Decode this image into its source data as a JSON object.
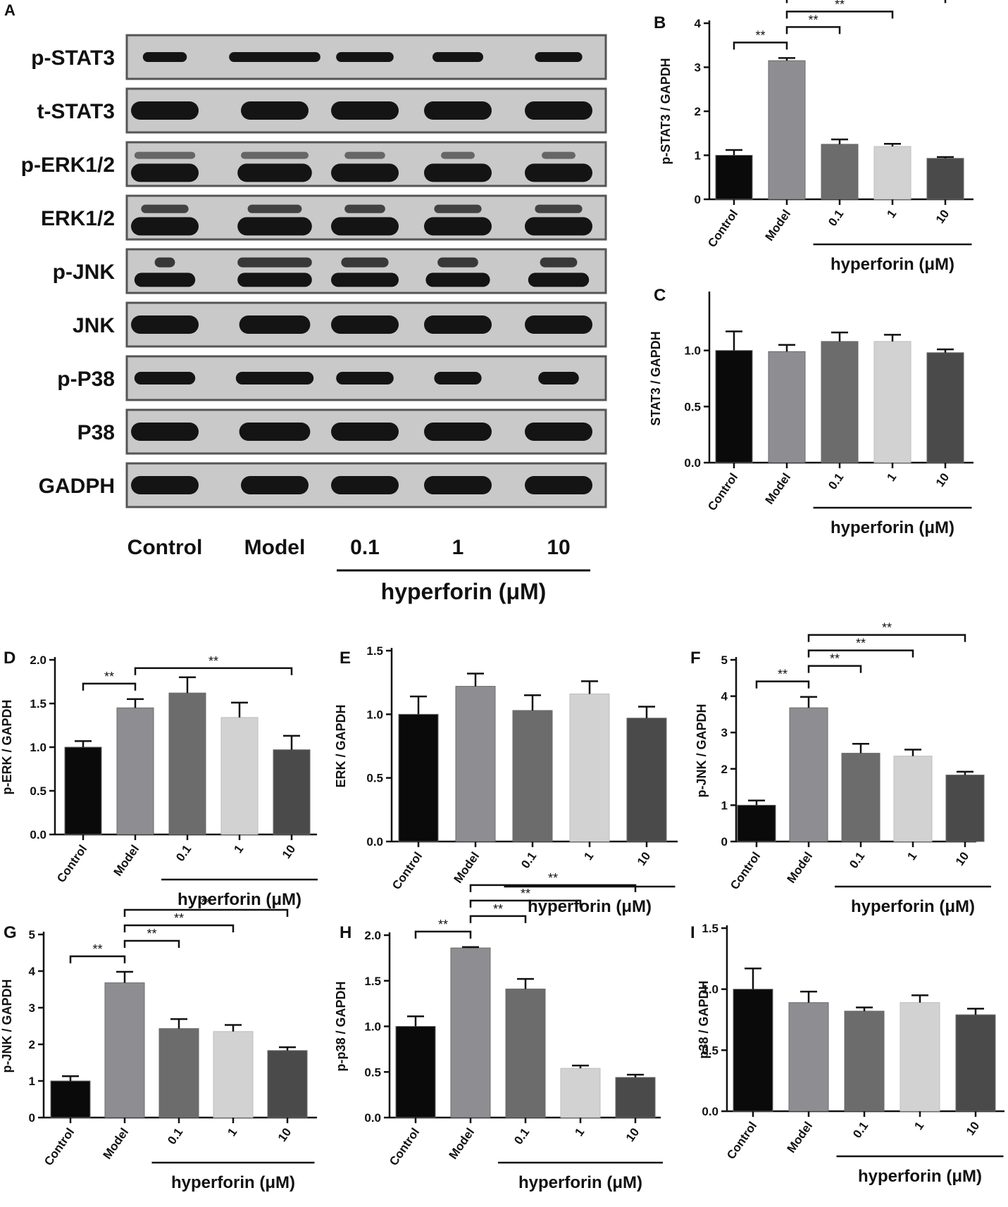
{
  "figure": {
    "blot": {
      "panel_label": "A",
      "rows": [
        "p-STAT3",
        "t-STAT3",
        "p-ERK1/2",
        "ERK1/2",
        "p-JNK",
        "JNK",
        "p-P38",
        "P38",
        "GADPH"
      ],
      "lanes": [
        "Control",
        "Model",
        "0.1",
        "1",
        "10"
      ],
      "treatment_label": "hyperforin (μM)"
    }
  },
  "colors": {
    "Control": "#0a0a0a",
    "Model": "#8e8e92",
    "0.1": "#6c6c6c",
    "1": "#d2d2d2",
    "10": "#4a4a4a",
    "blot_bg": "#c9c9c9",
    "blot_border": "#555555"
  },
  "chart_data": [
    {
      "panel": "B",
      "type": "bar",
      "categories": [
        "Control",
        "Model",
        "0.1",
        "1",
        "10"
      ],
      "values": [
        1.0,
        3.15,
        1.25,
        1.2,
        0.93
      ],
      "errors": [
        0.12,
        0.06,
        0.11,
        0.06,
        0.03
      ],
      "ylabel": "p-STAT3 / GAPDH",
      "xlabel": "",
      "group_label": "hyperforin (μM)",
      "ylim": [
        0,
        4
      ],
      "yticks": [
        "0",
        "1",
        "2",
        "3",
        "4"
      ],
      "significance": [
        {
          "from": "Control",
          "to": "Model",
          "label": "**"
        },
        {
          "from": "Model",
          "to": "0.1",
          "label": "**"
        },
        {
          "from": "Model",
          "to": "1",
          "label": "**"
        },
        {
          "from": "Model",
          "to": "10",
          "label": "**"
        }
      ]
    },
    {
      "panel": "C",
      "type": "bar",
      "categories": [
        "Control",
        "Model",
        "0.1",
        "1",
        "10"
      ],
      "values": [
        1.0,
        0.99,
        1.08,
        1.08,
        0.98
      ],
      "errors": [
        0.17,
        0.06,
        0.08,
        0.06,
        0.03
      ],
      "ylabel": "STAT3 / GAPDH",
      "xlabel": "",
      "group_label": "hyperforin (μM)",
      "ylim": [
        0,
        1.5
      ],
      "yticks": [
        "0.0",
        "0.5",
        "1.0"
      ],
      "significance": []
    },
    {
      "panel": "D",
      "type": "bar",
      "categories": [
        "Control",
        "Model",
        "0.1",
        "1",
        "10"
      ],
      "values": [
        1.0,
        1.45,
        1.62,
        1.34,
        0.97
      ],
      "errors": [
        0.07,
        0.1,
        0.18,
        0.17,
        0.16
      ],
      "ylabel": "p-ERK / GAPDH",
      "xlabel": "",
      "group_label": "hyperforin (μM)",
      "ylim": [
        0,
        2.0
      ],
      "yticks": [
        "0.0",
        "0.5",
        "1.0",
        "1.5",
        "2.0"
      ],
      "significance": [
        {
          "from": "Control",
          "to": "Model",
          "label": "**"
        },
        {
          "from": "Model",
          "to": "10",
          "label": "**"
        }
      ]
    },
    {
      "panel": "E",
      "type": "bar",
      "categories": [
        "Control",
        "Model",
        "0.1",
        "1",
        "10"
      ],
      "values": [
        1.0,
        1.22,
        1.03,
        1.16,
        0.97
      ],
      "errors": [
        0.14,
        0.1,
        0.12,
        0.1,
        0.09
      ],
      "ylabel": "ERK / GAPDH",
      "xlabel": "",
      "group_label": "hyperforin (μM)",
      "ylim": [
        0,
        1.5
      ],
      "yticks": [
        "0.0",
        "0.5",
        "1.0",
        "1.5"
      ],
      "significance": []
    },
    {
      "panel": "F",
      "type": "bar",
      "categories": [
        "Control",
        "Model",
        "0.1",
        "1",
        "10"
      ],
      "values": [
        1.0,
        3.68,
        2.43,
        2.35,
        1.83
      ],
      "errors": [
        0.13,
        0.3,
        0.26,
        0.18,
        0.09
      ],
      "ylabel": "p-JNK / GAPDH",
      "xlabel": "",
      "group_label": "hyperforin (μM)",
      "ylim": [
        0,
        5
      ],
      "yticks": [
        "0",
        "1",
        "2",
        "3",
        "4",
        "5"
      ],
      "significance": [
        {
          "from": "Control",
          "to": "Model",
          "label": "**"
        },
        {
          "from": "Model",
          "to": "0.1",
          "label": "**"
        },
        {
          "from": "Model",
          "to": "1",
          "label": "**"
        },
        {
          "from": "Model",
          "to": "10",
          "label": "**"
        }
      ]
    },
    {
      "panel": "G",
      "type": "bar",
      "categories": [
        "Control",
        "Model",
        "0.1",
        "1",
        "10"
      ],
      "values": [
        1.0,
        3.68,
        2.43,
        2.35,
        1.83
      ],
      "errors": [
        0.13,
        0.3,
        0.26,
        0.18,
        0.09
      ],
      "ylabel": "p-JNK / GAPDH",
      "xlabel": "",
      "group_label": "hyperforin (μM)",
      "ylim": [
        0,
        5
      ],
      "yticks": [
        "0",
        "1",
        "2",
        "3",
        "4",
        "5"
      ],
      "significance": [
        {
          "from": "Control",
          "to": "Model",
          "label": "**"
        },
        {
          "from": "Model",
          "to": "0.1",
          "label": "**"
        },
        {
          "from": "Model",
          "to": "1",
          "label": "**"
        },
        {
          "from": "Model",
          "to": "10",
          "label": "**"
        }
      ]
    },
    {
      "panel": "H",
      "type": "bar",
      "categories": [
        "Control",
        "Model",
        "0.1",
        "1",
        "10"
      ],
      "values": [
        1.0,
        1.86,
        1.41,
        0.54,
        0.44
      ],
      "errors": [
        0.11,
        0.01,
        0.11,
        0.03,
        0.03
      ],
      "ylabel": "p-p38 / GAPDH",
      "xlabel": "",
      "group_label": "hyperforin (μM)",
      "ylim": [
        0,
        2.0
      ],
      "yticks": [
        "0.0",
        "0.5",
        "1.0",
        "1.5",
        "2.0"
      ],
      "significance": [
        {
          "from": "Control",
          "to": "Model",
          "label": "**"
        },
        {
          "from": "Model",
          "to": "0.1",
          "label": "**"
        },
        {
          "from": "Model",
          "to": "1",
          "label": "**"
        },
        {
          "from": "Model",
          "to": "10",
          "label": "**"
        }
      ]
    },
    {
      "panel": "I",
      "type": "bar",
      "categories": [
        "Control",
        "Model",
        "0.1",
        "1",
        "10"
      ],
      "values": [
        1.0,
        0.89,
        0.82,
        0.89,
        0.79
      ],
      "errors": [
        0.17,
        0.09,
        0.03,
        0.06,
        0.05
      ],
      "ylabel": "p38 / GAPDH",
      "xlabel": "",
      "group_label": "hyperforin (μM)",
      "ylim": [
        0,
        1.5
      ],
      "yticks": [
        "0.0",
        "0.5",
        "1.0",
        "1.5"
      ],
      "significance": []
    }
  ]
}
